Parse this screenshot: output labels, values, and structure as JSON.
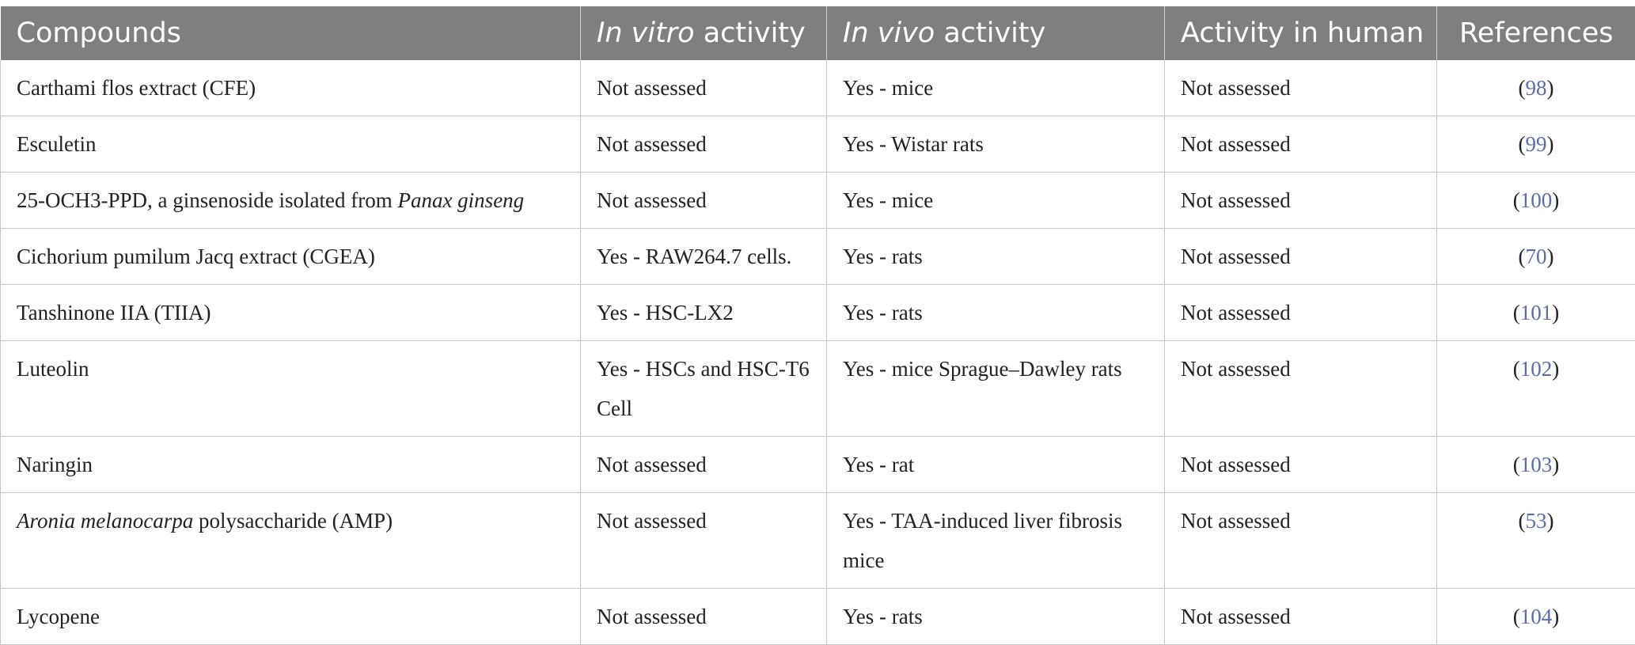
{
  "table": {
    "headers": {
      "compounds": "Compounds",
      "in_vitro_em": "In vitro",
      "in_vitro_rest": " activity",
      "in_vivo_em": "In vivo",
      "in_vivo_rest": " activity",
      "human": "Activity in human",
      "references": "References"
    },
    "rows": [
      {
        "compound_pre": "Carthami flos extract (CFE)",
        "compound_em": "",
        "compound_post": "",
        "in_vitro": "Not assessed",
        "in_vivo": "Yes - mice",
        "human": "Not assessed",
        "ref": "98"
      },
      {
        "compound_pre": "Esculetin",
        "compound_em": "",
        "compound_post": "",
        "in_vitro": "Not assessed",
        "in_vivo": "Yes - Wistar rats",
        "human": "Not assessed",
        "ref": "99"
      },
      {
        "compound_pre": "25-OCH3-PPD, a ginsenoside isolated from ",
        "compound_em": "Panax ginseng",
        "compound_post": "",
        "in_vitro": "Not assessed",
        "in_vivo": "Yes - mice",
        "human": "Not assessed",
        "ref": "100"
      },
      {
        "compound_pre": "Cichorium pumilum Jacq extract (CGEA)",
        "compound_em": "",
        "compound_post": "",
        "in_vitro": "Yes - RAW264.7 cells.",
        "in_vivo": "Yes - rats",
        "human": "Not assessed",
        "ref": "70"
      },
      {
        "compound_pre": "Tanshinone IIA (TIIA)",
        "compound_em": "",
        "compound_post": "",
        "in_vitro": "Yes - HSC-LX2",
        "in_vivo": "Yes - rats",
        "human": "Not assessed",
        "ref": "101"
      },
      {
        "compound_pre": "Luteolin",
        "compound_em": "",
        "compound_post": "",
        "in_vitro": "Yes - HSCs and HSC-T6 Cell",
        "in_vivo": "Yes - mice Sprague–Dawley rats",
        "human": "Not assessed",
        "ref": "102"
      },
      {
        "compound_pre": "Naringin",
        "compound_em": "",
        "compound_post": "",
        "in_vitro": "Not assessed",
        "in_vivo": "Yes - rat",
        "human": "Not assessed",
        "ref": "103"
      },
      {
        "compound_pre": "",
        "compound_em": "Aronia melanocarpa",
        "compound_post": " polysaccharide (AMP)",
        "in_vitro": "Not assessed",
        "in_vivo": "Yes - TAA-induced liver fibrosis mice",
        "human": "Not assessed",
        "ref": "53"
      },
      {
        "compound_pre": "Lycopene",
        "compound_em": "",
        "compound_post": "",
        "in_vitro": "Not assessed",
        "in_vivo": "Yes - rats",
        "human": "Not assessed",
        "ref": "104"
      }
    ]
  }
}
